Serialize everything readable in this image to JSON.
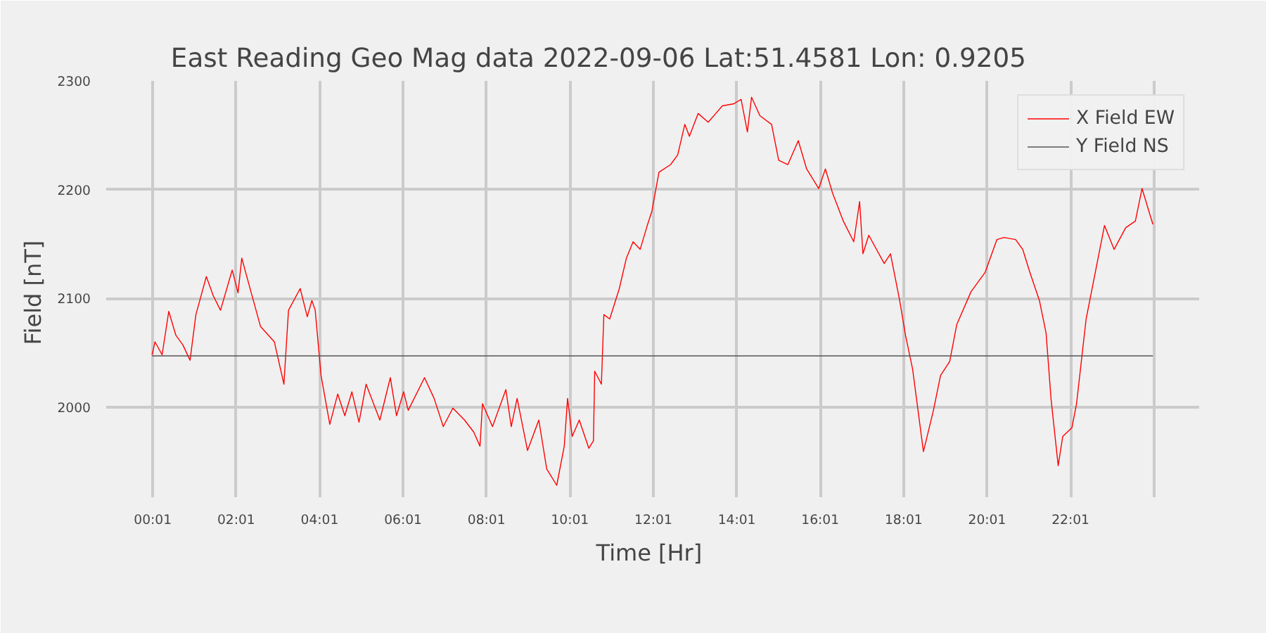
{
  "chart_data": {
    "type": "line",
    "title": "East Reading Geo Mag data        2022-09-06      Lat:51.4581  Lon: 0.9205",
    "xlabel": "Time  [Hr]",
    "ylabel": "Field  [nT]",
    "series": [
      {
        "name": "X Field EW",
        "color": "#ff0000",
        "x": [
          0,
          0.07,
          0.24,
          0.4,
          0.57,
          0.74,
          0.91,
          1.05,
          1.3,
          1.47,
          1.64,
          1.92,
          2.06,
          2.15,
          2.37,
          2.6,
          2.93,
          3.16,
          3.27,
          3.55,
          3.72,
          3.83,
          3.91,
          4.05,
          4.26,
          4.45,
          4.62,
          4.79,
          4.96,
          5.13,
          5.46,
          5.71,
          5.86,
          6.03,
          6.14,
          6.53,
          6.76,
          6.98,
          7.21,
          7.49,
          7.71,
          7.86,
          7.92,
          8.16,
          8.48,
          8.61,
          8.75,
          9.0,
          9.27,
          9.46,
          9.7,
          9.88,
          9.96,
          10.07,
          10.24,
          10.47,
          10.58,
          10.61,
          10.77,
          10.83,
          10.97,
          11.2,
          11.37,
          11.53,
          11.7,
          11.87,
          11.98,
          12.15,
          12.43,
          12.6,
          12.77,
          12.88,
          13.09,
          13.33,
          13.67,
          13.95,
          14.12,
          14.27,
          14.37,
          14.57,
          14.85,
          15.02,
          15.24,
          15.49,
          15.69,
          15.98,
          16.14,
          16.31,
          16.42,
          16.57,
          16.82,
          16.96,
          17.04,
          17.18,
          17.55,
          17.7,
          17.92,
          18.06,
          18.23,
          18.49,
          18.73,
          18.9,
          19.12,
          19.29,
          19.63,
          19.97,
          20.25,
          20.42,
          20.7,
          20.87,
          21.04,
          21.27,
          21.43,
          21.55,
          21.72,
          21.83,
          22.05,
          22.16,
          22.39,
          22.61,
          22.83,
          23.06,
          23.34,
          23.57,
          23.73,
          23.99
        ],
        "values": [
          2048,
          2060,
          2048,
          2088,
          2066,
          2057,
          2043,
          2085,
          2120,
          2102,
          2089,
          2126,
          2105,
          2137,
          2106,
          2074,
          2060,
          2021,
          2089,
          2109,
          2083,
          2098,
          2089,
          2029,
          1984,
          2012,
          1992,
          2014,
          1986,
          2021,
          1988,
          2027,
          1992,
          2014,
          1997,
          2027,
          2008,
          1982,
          1999,
          1988,
          1977,
          1964,
          2003,
          1982,
          2016,
          1982,
          2008,
          1960,
          1988,
          1943,
          1928,
          1964,
          2008,
          1973,
          1988,
          1962,
          1969,
          2033,
          2021,
          2085,
          2081,
          2109,
          2137,
          2152,
          2145,
          2167,
          2180,
          2216,
          2223,
          2232,
          2260,
          2249,
          2270,
          2262,
          2277,
          2279,
          2283,
          2253,
          2285,
          2268,
          2260,
          2227,
          2223,
          2245,
          2219,
          2201,
          2219,
          2197,
          2186,
          2171,
          2152,
          2189,
          2141,
          2158,
          2132,
          2141,
          2098,
          2066,
          2035,
          1959,
          1997,
          2029,
          2042,
          2076,
          2106,
          2124,
          2154,
          2156,
          2154,
          2145,
          2124,
          2098,
          2068,
          2007,
          1946,
          1973,
          1981,
          2003,
          2081,
          2124,
          2167,
          2145,
          2165,
          2171,
          2201,
          2168
        ]
      },
      {
        "name": "Y Field NS",
        "color": "#555555",
        "x": [
          0,
          23.99
        ],
        "values": [
          2047,
          2047
        ]
      }
    ],
    "xlim": [
      -1.1,
      25.1
    ],
    "ylim": [
      1917,
      2300
    ],
    "xticks": [
      {
        "value": 0.0167,
        "label": "00:01"
      },
      {
        "value": 2.0167,
        "label": "02:01"
      },
      {
        "value": 4.0167,
        "label": "04:01"
      },
      {
        "value": 6.0167,
        "label": "06:01"
      },
      {
        "value": 8.0167,
        "label": "08:01"
      },
      {
        "value": 10.0167,
        "label": "10:01"
      },
      {
        "value": 12.0167,
        "label": "12:01"
      },
      {
        "value": 14.0167,
        "label": "14:01"
      },
      {
        "value": 16.0167,
        "label": "16:01"
      },
      {
        "value": 18.0167,
        "label": "18:01"
      },
      {
        "value": 20.0167,
        "label": "20:01"
      },
      {
        "value": 22.0167,
        "label": "22:01"
      },
      {
        "value": 24.0167,
        "label": null
      }
    ],
    "yticks": [
      2000,
      2100,
      2200,
      2300
    ],
    "grid": true,
    "legend": "top right",
    "line_style": "solid"
  }
}
